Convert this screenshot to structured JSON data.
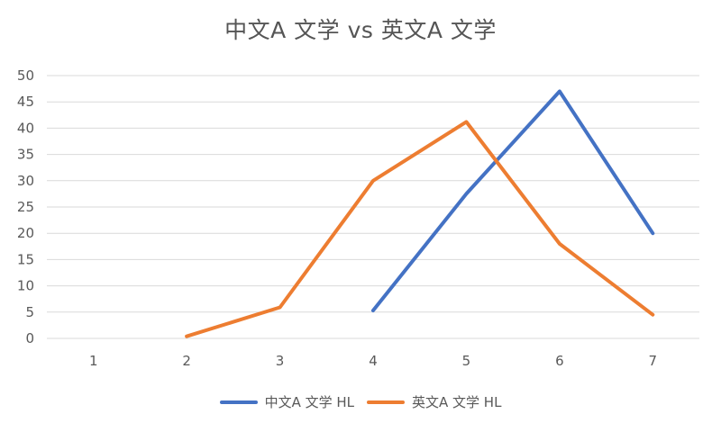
{
  "chart_data": {
    "type": "line",
    "title": "中文A 文学 vs 英文A 文学",
    "xlabel": "",
    "ylabel": "",
    "categories": [
      "1",
      "2",
      "3",
      "4",
      "5",
      "6",
      "7"
    ],
    "ylim": [
      0,
      50
    ],
    "yticks": [
      0,
      5,
      10,
      15,
      20,
      25,
      30,
      35,
      40,
      45,
      50
    ],
    "grid": true,
    "legend_position": "bottom",
    "series": [
      {
        "name": "中文A  文学 HL",
        "color": "#4472c4",
        "values": [
          null,
          null,
          null,
          5.3,
          27.5,
          47,
          20
        ]
      },
      {
        "name": "英文A  文学 HL",
        "color": "#ed7d31",
        "values": [
          null,
          0.4,
          5.9,
          30,
          41.2,
          18,
          4.5
        ]
      }
    ]
  }
}
